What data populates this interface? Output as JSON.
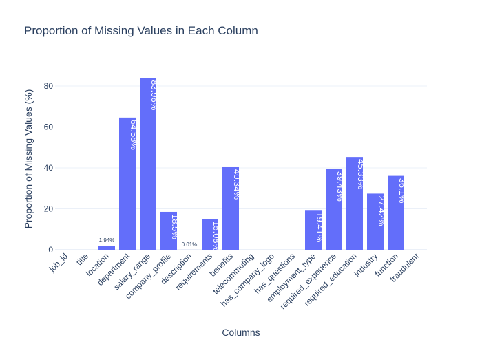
{
  "chart_data": {
    "type": "bar",
    "title": "Proportion of Missing Values in Each Column",
    "xlabel": "Columns",
    "ylabel": "Proportion of Missing Values (%)",
    "ylim": [
      0,
      88.4
    ],
    "yticks": [
      0,
      20,
      40,
      60,
      80
    ],
    "grid": true,
    "categories": [
      "job_id",
      "title",
      "location",
      "department",
      "salary_range",
      "company_profile",
      "description",
      "requirements",
      "benefits",
      "telecommuting",
      "has_company_logo",
      "has_questions",
      "employment_type",
      "required_experience",
      "required_education",
      "industry",
      "function",
      "fraudulent"
    ],
    "values": [
      0,
      0,
      1.94,
      64.58,
      83.96,
      18.5,
      0.01,
      15.08,
      40.34,
      0,
      0,
      0,
      19.41,
      39.43,
      45.33,
      27.42,
      36.1,
      0
    ],
    "labels": [
      "",
      "",
      "1.94%",
      "64.58%",
      "83.96%",
      "18.5%",
      "0.01%",
      "15.08%",
      "40.34%",
      "",
      "",
      "",
      "19.41%",
      "39.43%",
      "45.33%",
      "27.42%",
      "36.1%",
      ""
    ],
    "colors": {
      "bar": "#636efa",
      "grid": "#ebf0f8",
      "text": "#2a3f5f",
      "background": "#ffffff"
    }
  }
}
